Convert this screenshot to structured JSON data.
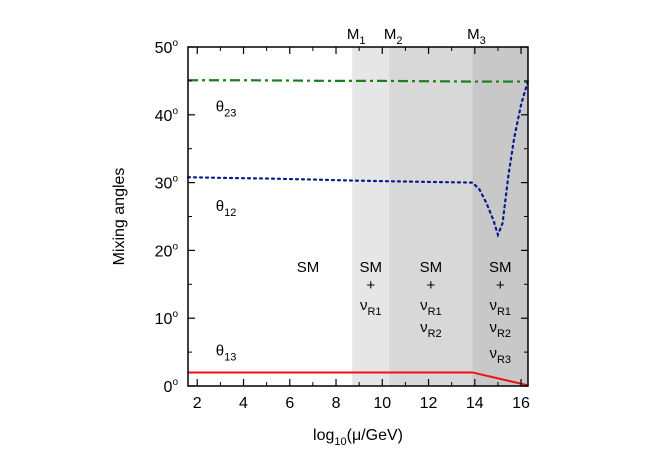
{
  "chart_data": {
    "type": "line",
    "xlabel": "log10(μ/GeV)",
    "ylabel": "Mixing angles",
    "xlim": [
      1.6,
      16.3
    ],
    "ylim": [
      0,
      50
    ],
    "x_ticks": [
      2,
      4,
      6,
      8,
      10,
      12,
      14,
      16
    ],
    "y_ticks": [
      0,
      10,
      20,
      30,
      40,
      50
    ],
    "y_tick_unit": "o",
    "grid": false,
    "regions": [
      {
        "x0": 1.6,
        "x1": 8.7,
        "color": "#ffffff",
        "lines": [
          "SM"
        ]
      },
      {
        "x0": 8.7,
        "x1": 10.3,
        "color": "#e6e6e6",
        "lines": [
          "SM",
          "+",
          "ν_R1"
        ]
      },
      {
        "x0": 10.3,
        "x1": 13.9,
        "color": "#d8d8d8",
        "lines": [
          "SM",
          "+",
          "ν_R1",
          "ν_R2"
        ]
      },
      {
        "x0": 13.9,
        "x1": 16.3,
        "color": "#c8c8c8",
        "lines": [
          "SM",
          "+",
          "ν_R1",
          "ν_R2",
          "ν_R3"
        ]
      }
    ],
    "thresholds": [
      {
        "label": "M_1",
        "x": 8.7
      },
      {
        "label": "M_2",
        "x": 10.3
      },
      {
        "label": "M_3",
        "x": 13.9
      }
    ],
    "series": [
      {
        "name": "θ_23",
        "color": "#1a7f1a",
        "style": "dashdot",
        "x": [
          1.6,
          4,
          8,
          10,
          12,
          13.9,
          15,
          16.3
        ],
        "y": [
          45.1,
          45.1,
          45.0,
          45.0,
          44.95,
          44.9,
          44.9,
          44.9
        ]
      },
      {
        "name": "θ_12",
        "color": "#0a1a8c",
        "style": "dotted",
        "x": [
          1.6,
          3,
          5,
          7,
          8.7,
          10.3,
          12,
          13.0,
          13.9,
          14.2,
          14.5,
          14.8,
          15.0,
          15.2,
          15.45,
          15.7,
          16.0,
          16.3
        ],
        "y": [
          30.8,
          30.7,
          30.6,
          30.45,
          30.3,
          30.2,
          30.1,
          30.05,
          30.0,
          29.0,
          27.0,
          24.5,
          22.3,
          24.0,
          31.0,
          36.5,
          41.5,
          45.0
        ]
      },
      {
        "name": "θ_13",
        "color": "#ee1111",
        "style": "solid",
        "x": [
          1.6,
          8.7,
          10.3,
          13.9,
          16.3
        ],
        "y": [
          2.0,
          2.0,
          2.0,
          2.0,
          0.1
        ]
      }
    ],
    "series_label_positions": [
      {
        "name": "θ_23",
        "x": 2.8,
        "y": 40.5
      },
      {
        "name": "θ_12",
        "x": 2.8,
        "y": 25.8
      },
      {
        "name": "θ_13",
        "x": 2.8,
        "y": 4.5
      }
    ]
  }
}
